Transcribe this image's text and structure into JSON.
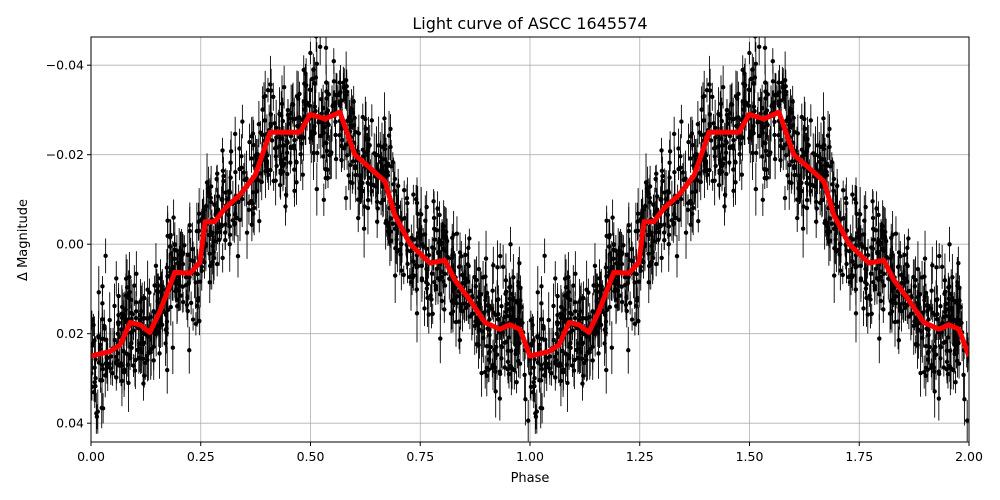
{
  "chart_data": {
    "type": "scatter",
    "title": "Light curve of ASCC 1645574",
    "xlabel": "Phase",
    "ylabel": "Δ Magnitude",
    "xlim": [
      0,
      2
    ],
    "ylim": [
      0.0442,
      -0.0463
    ],
    "y_inverted": true,
    "grid": true,
    "x_ticks": [
      "0.00",
      "0.25",
      "0.50",
      "0.75",
      "1.00",
      "1.25",
      "1.50",
      "1.75",
      "2.00"
    ],
    "x_tick_values": [
      0,
      0.25,
      0.5,
      0.75,
      1,
      1.25,
      1.5,
      1.75,
      2
    ],
    "y_ticks": [
      "−0.04",
      "−0.02",
      "0.00",
      "0.02",
      "0.04"
    ],
    "y_tick_values": [
      -0.04,
      -0.02,
      0,
      0.02,
      0.04
    ],
    "colors": {
      "points": "#000000",
      "model": "#ff0000",
      "grid": "#b0b0b0"
    },
    "model_curve": {
      "x": [
        0.0,
        0.043,
        0.066,
        0.089,
        0.112,
        0.134,
        0.157,
        0.191,
        0.226,
        0.248,
        0.26,
        0.282,
        0.305,
        0.339,
        0.374,
        0.408,
        0.476,
        0.499,
        0.533,
        0.567,
        0.601,
        0.636,
        0.67,
        0.692,
        0.727,
        0.772,
        0.806,
        0.829,
        0.863,
        0.897,
        0.932,
        0.954,
        0.977,
        1.0,
        1.043,
        1.066,
        1.089,
        1.112,
        1.134,
        1.157,
        1.191,
        1.226,
        1.248,
        1.26,
        1.282,
        1.305,
        1.339,
        1.374,
        1.408,
        1.476,
        1.499,
        1.533,
        1.567,
        1.601,
        1.636,
        1.67,
        1.692,
        1.727,
        1.772,
        1.806,
        1.829,
        1.863,
        1.897,
        1.932,
        1.954,
        1.977,
        2.0
      ],
      "y": [
        0.025,
        0.024,
        0.0225,
        0.0175,
        0.018,
        0.0197,
        0.015,
        0.0063,
        0.0065,
        0.004,
        -0.005,
        -0.005,
        -0.008,
        -0.011,
        -0.0154,
        -0.025,
        -0.025,
        -0.029,
        -0.028,
        -0.0295,
        -0.02,
        -0.017,
        -0.014,
        -0.0065,
        0.0,
        0.0042,
        0.0036,
        0.008,
        0.0125,
        0.0175,
        0.019,
        0.018,
        0.019,
        0.025,
        0.024,
        0.0225,
        0.0175,
        0.018,
        0.0197,
        0.015,
        0.0063,
        0.0065,
        0.004,
        -0.005,
        -0.005,
        -0.008,
        -0.011,
        -0.0154,
        -0.025,
        -0.025,
        -0.029,
        -0.028,
        -0.0295,
        -0.02,
        -0.017,
        -0.014,
        -0.0065,
        0.0,
        0.0042,
        0.0036,
        0.008,
        0.0125,
        0.0175,
        0.019,
        0.018,
        0.019,
        0.025
      ]
    }
  }
}
